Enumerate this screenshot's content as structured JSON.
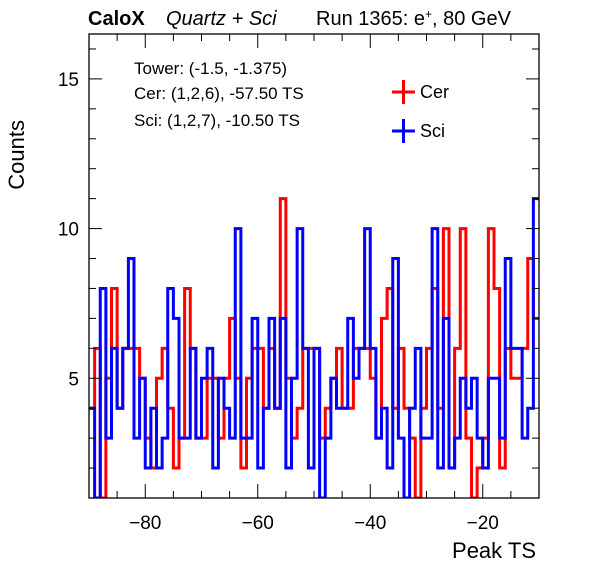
{
  "header": {
    "brand": "CaloX",
    "subtitle": "Quartz + Sci",
    "run_text": "Run 1365: e",
    "run_sup": "+",
    "run_tail": ", 80 GeV"
  },
  "info": {
    "tower": "Tower: (-1.5, -1.375)",
    "cer": "Cer: (1,2,6), -57.50 TS",
    "sci": "Sci: (1,2,7), -10.50 TS"
  },
  "colors": {
    "cer": "#ff0000",
    "sci": "#0000ff"
  },
  "chart_data": {
    "type": "histogram",
    "xlabel": "Peak TS",
    "ylabel": "Counts",
    "xlim": [
      -90,
      -10
    ],
    "ylim": [
      1,
      16.5
    ],
    "bin_width": 1,
    "x_start": -90,
    "xticks": [
      -80,
      -60,
      -40,
      -20
    ],
    "xtick_labels": [
      "−80",
      "−60",
      "−40",
      "−20"
    ],
    "yticks": [
      5,
      10,
      15
    ],
    "ytick_labels": [
      "5",
      "10",
      "15"
    ],
    "grid": false,
    "legend_position": "top-right",
    "series": [
      {
        "name": "Cer",
        "color": "#ff0000",
        "values": [
          4,
          6,
          1,
          5,
          8,
          4,
          6,
          6,
          6,
          5,
          3,
          2,
          5,
          6,
          4,
          2,
          3,
          8,
          6,
          3,
          3,
          5,
          5,
          3,
          5,
          7,
          5,
          2,
          5,
          6,
          6,
          4,
          6,
          4,
          11,
          5,
          3,
          4,
          6,
          6,
          6,
          3,
          4,
          5,
          6,
          4,
          4,
          6,
          6,
          6,
          5,
          3,
          7,
          8,
          4,
          6,
          4,
          3,
          1,
          4,
          6,
          8,
          4,
          10,
          2,
          6,
          10,
          3,
          1,
          2,
          3,
          10,
          8,
          2,
          6,
          5,
          5,
          6,
          9,
          7
        ]
      },
      {
        "name": "Sci",
        "color": "#0000ff",
        "values": [
          4,
          1,
          8,
          3,
          6,
          4,
          6,
          9,
          3,
          5,
          2,
          4,
          2,
          3,
          8,
          7,
          3,
          3,
          6,
          3,
          5,
          6,
          2,
          5,
          4,
          3,
          10,
          3,
          3,
          7,
          2,
          4,
          7,
          4,
          7,
          2,
          5,
          10,
          6,
          2,
          6,
          1,
          3,
          5,
          4,
          4,
          7,
          5,
          6,
          10,
          6,
          3,
          4,
          2,
          9,
          3,
          1,
          4,
          6,
          3,
          3,
          10,
          2,
          7,
          2,
          3,
          5,
          4,
          5,
          3,
          2,
          5,
          5,
          3,
          9,
          6,
          6,
          3,
          4,
          11
        ]
      }
    ]
  }
}
